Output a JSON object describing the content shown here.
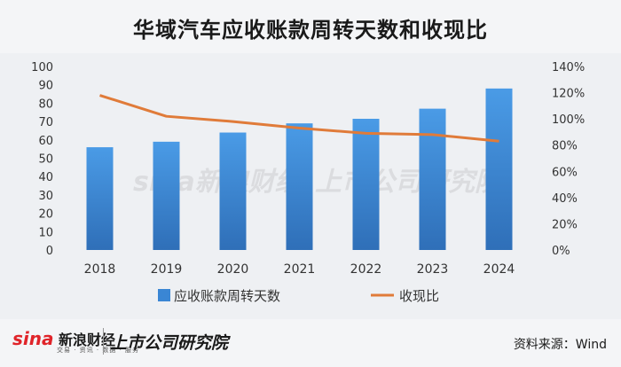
{
  "title": "华域汽车应收账款周转天数和收现比",
  "chart_data": {
    "type": "bar+line",
    "categories": [
      "2018",
      "2019",
      "2020",
      "2021",
      "2022",
      "2023",
      "2024"
    ],
    "series": [
      {
        "name": "应收账款周转天数",
        "type": "bar",
        "axis": "left",
        "values": [
          56,
          59,
          64,
          69,
          71.5,
          77,
          88
        ],
        "color": "#3a86d4"
      },
      {
        "name": "收现比",
        "type": "line",
        "axis": "right",
        "values": [
          1.18,
          1.02,
          0.98,
          0.93,
          0.89,
          0.88,
          0.83
        ],
        "color": "#e07b39"
      }
    ],
    "yleft": {
      "min": 0,
      "max": 100,
      "ticks": [
        "0",
        "10",
        "20",
        "30",
        "40",
        "50",
        "60",
        "70",
        "80",
        "90",
        "100"
      ]
    },
    "yright": {
      "min": 0,
      "max": 1.4,
      "ticks": [
        "0%",
        "20%",
        "40%",
        "60%",
        "80%",
        "100%",
        "120%",
        "140%"
      ]
    },
    "legend_position": "bottom",
    "grid": false
  },
  "watermark": {
    "brand": "sina新浪财经",
    "institute": "上市公司研究院"
  },
  "footer": {
    "sina": "sina",
    "sina_cn": "新浪财经",
    "sina_sub": "交易 · 资讯 · 数据 · 服务",
    "institute": "上市公司研究院",
    "source": "资料来源：Wind"
  }
}
